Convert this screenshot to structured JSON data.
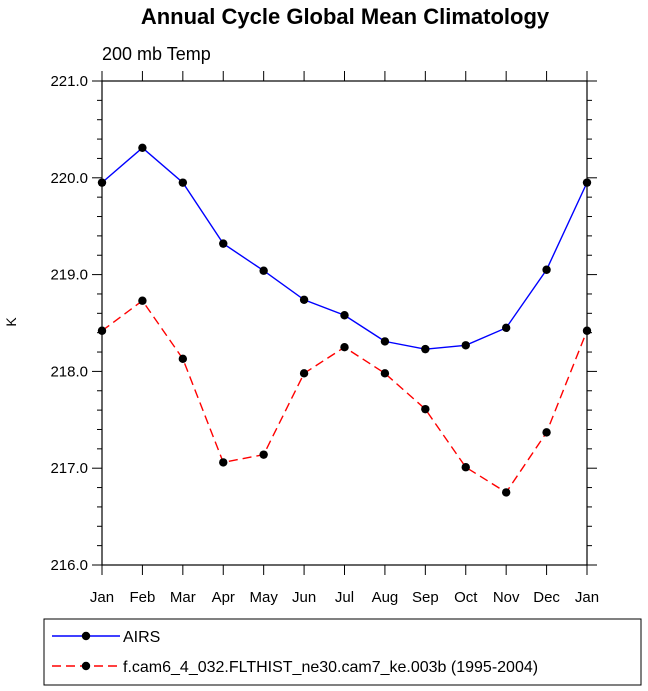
{
  "chart_data": {
    "type": "line",
    "title": "Annual Cycle Global Mean Climatology",
    "subtitle": "200 mb Temp",
    "ylabel": "K",
    "xlabel": "",
    "categories": [
      "Jan",
      "Feb",
      "Mar",
      "Apr",
      "May",
      "Jun",
      "Jul",
      "Aug",
      "Sep",
      "Oct",
      "Nov",
      "Dec",
      "Jan"
    ],
    "ylim": [
      216.0,
      221.0
    ],
    "yticks": [
      "216.0",
      "217.0",
      "218.0",
      "219.0",
      "220.0",
      "221.0"
    ],
    "grid": false,
    "legend_position": "bottom",
    "series": [
      {
        "name": "AIRS",
        "color": "#0000ff",
        "style": "solid",
        "values": [
          219.95,
          220.31,
          219.95,
          219.32,
          219.04,
          218.74,
          218.58,
          218.31,
          218.23,
          218.27,
          218.45,
          219.05,
          219.95
        ]
      },
      {
        "name": "f.cam6_4_032.FLTHIST_ne30.cam7_ke.003b (1995-2004)",
        "color": "#ff0000",
        "style": "dashed",
        "values": [
          218.42,
          218.73,
          218.13,
          217.06,
          217.14,
          217.98,
          218.25,
          217.98,
          217.61,
          217.01,
          216.75,
          217.37,
          218.42
        ]
      }
    ]
  }
}
